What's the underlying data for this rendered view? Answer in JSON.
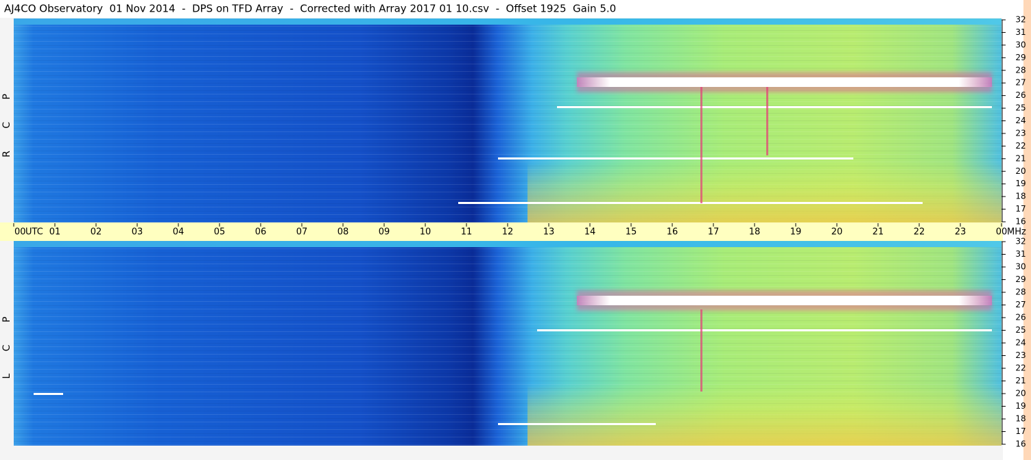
{
  "chart_data": {
    "type": "spectrogram",
    "title": "AJ4CO Observatory  01 Nov 2014  -  DPS on TFD Array  -  Corrected with Array 2017 01 10.csv  -  Offset 1925  Gain 5.0",
    "panels": [
      {
        "name": "R C P"
      },
      {
        "name": "L C P"
      }
    ],
    "x_label": "UTC",
    "y_label": "MHz",
    "xlim": [
      0,
      24
    ],
    "xticks": [
      {
        "value": 0,
        "label": "00"
      },
      {
        "value": 1,
        "label": "01"
      },
      {
        "value": 2,
        "label": "02"
      },
      {
        "value": 3,
        "label": "03"
      },
      {
        "value": 4,
        "label": "04"
      },
      {
        "value": 5,
        "label": "05"
      },
      {
        "value": 6,
        "label": "06"
      },
      {
        "value": 7,
        "label": "07"
      },
      {
        "value": 8,
        "label": "08"
      },
      {
        "value": 9,
        "label": "09"
      },
      {
        "value": 10,
        "label": "10"
      },
      {
        "value": 11,
        "label": "11"
      },
      {
        "value": 12,
        "label": "12"
      },
      {
        "value": 13,
        "label": "13"
      },
      {
        "value": 14,
        "label": "14"
      },
      {
        "value": 15,
        "label": "15"
      },
      {
        "value": 16,
        "label": "16"
      },
      {
        "value": 17,
        "label": "17"
      },
      {
        "value": 18,
        "label": "18"
      },
      {
        "value": 19,
        "label": "19"
      },
      {
        "value": 20,
        "label": "20"
      },
      {
        "value": 21,
        "label": "21"
      },
      {
        "value": 22,
        "label": "22"
      },
      {
        "value": 23,
        "label": "23"
      },
      {
        "value": 24,
        "label": "00"
      }
    ],
    "ylim": [
      16,
      32
    ],
    "yticks": [
      16,
      17,
      18,
      19,
      20,
      21,
      22,
      23,
      24,
      25,
      26,
      27,
      28,
      29,
      30,
      31,
      32
    ]
  }
}
